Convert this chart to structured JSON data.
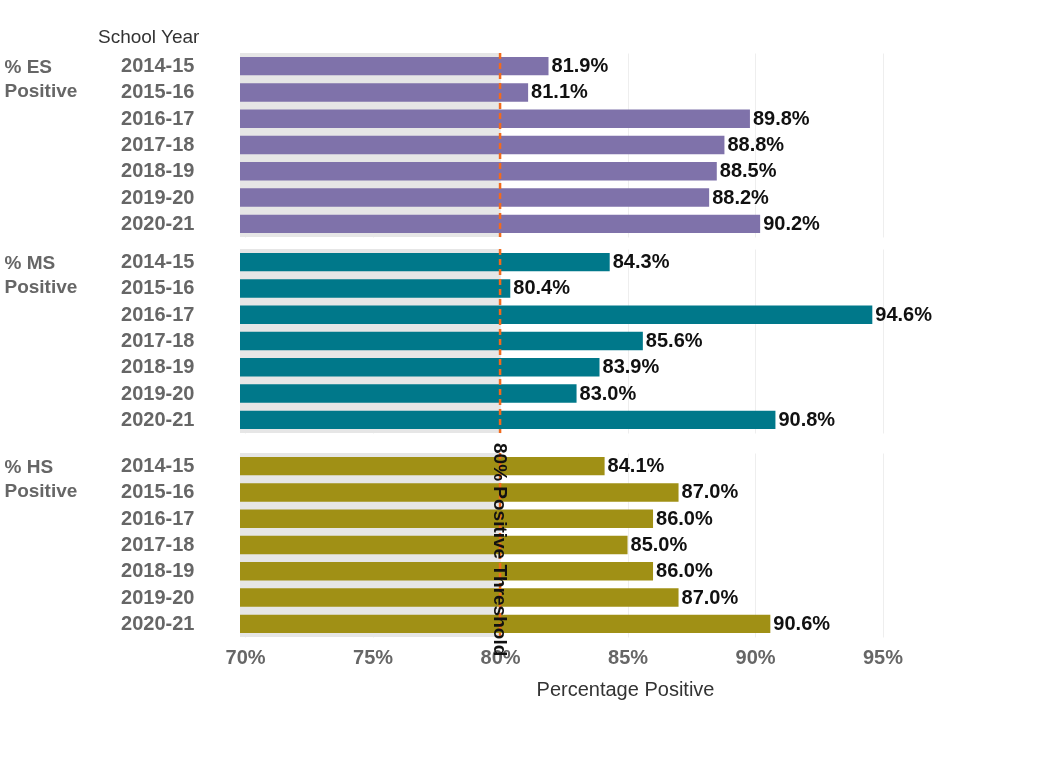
{
  "chart_data": [
    {
      "type": "bar",
      "orientation": "horizontal",
      "title": "School Year",
      "ylabel": "% ES Positive",
      "categories": [
        "2014-15",
        "2015-16",
        "2016-17",
        "2017-18",
        "2018-19",
        "2019-20",
        "2020-21"
      ],
      "series": [
        {
          "color": "#7f72aa",
          "values": [
            81.9,
            81.1,
            89.8,
            88.8,
            88.5,
            88.2,
            90.2
          ],
          "value_labels": [
            "81.9%",
            "81.1%",
            "89.8%",
            "88.8%",
            "88.5%",
            "88.2%",
            "90.2%"
          ]
        }
      ],
      "xlim": [
        69.8,
        100
      ],
      "xticks": [
        {
          "value": 70,
          "label": null
        },
        {
          "value": 75,
          "label": null
        },
        {
          "value": 80,
          "label": null
        },
        {
          "value": 85,
          "label": null
        },
        {
          "value": 90,
          "label": null
        },
        {
          "value": 95,
          "label": null
        }
      ],
      "tick_labels": "y",
      "grid": "x",
      "bands": [
        {
          "axis": "x",
          "from": 69.8,
          "to": 80,
          "color": "#e6e6e6"
        }
      ],
      "ref_lines": [
        {
          "axis": "x",
          "value": 80,
          "color": "#f26b1d",
          "line_style": "dashed"
        }
      ]
    },
    {
      "type": "bar",
      "orientation": "horizontal",
      "ylabel": "% MS Positive",
      "categories": [
        "2014-15",
        "2015-16",
        "2016-17",
        "2017-18",
        "2018-19",
        "2019-20",
        "2020-21"
      ],
      "series": [
        {
          "color": "#00788a",
          "values": [
            84.3,
            80.4,
            94.6,
            85.6,
            83.9,
            83.0,
            90.8
          ],
          "value_labels": [
            "84.3%",
            "80.4%",
            "94.6%",
            "85.6%",
            "83.9%",
            "83.0%",
            "90.8%"
          ]
        }
      ],
      "xlim": [
        69.8,
        100
      ],
      "xticks": [
        {
          "value": 70,
          "label": null
        },
        {
          "value": 75,
          "label": null
        },
        {
          "value": 80,
          "label": null
        },
        {
          "value": 85,
          "label": null
        },
        {
          "value": 90,
          "label": null
        },
        {
          "value": 95,
          "label": null
        }
      ],
      "tick_labels": "y",
      "grid": "x",
      "bands": [
        {
          "axis": "x",
          "from": 69.8,
          "to": 80,
          "color": "#e6e6e6"
        }
      ],
      "ref_lines": [
        {
          "axis": "x",
          "value": 80,
          "color": "#f26b1d",
          "line_style": "dashed"
        }
      ]
    },
    {
      "type": "bar",
      "orientation": "horizontal",
      "xlabel": "Percentage Positive",
      "ylabel": "% HS Positive",
      "categories": [
        "2014-15",
        "2015-16",
        "2016-17",
        "2017-18",
        "2018-19",
        "2019-20",
        "2020-21"
      ],
      "series": [
        {
          "color": "#a09015",
          "values": [
            84.1,
            87.0,
            86.0,
            85.0,
            86.0,
            87.0,
            90.6
          ],
          "value_labels": [
            "84.1%",
            "87.0%",
            "86.0%",
            "85.0%",
            "86.0%",
            "87.0%",
            "90.6%"
          ]
        }
      ],
      "xlim": [
        69.8,
        100
      ],
      "xticks": [
        {
          "value": 70,
          "label": "70%"
        },
        {
          "value": 75,
          "label": "75%"
        },
        {
          "value": 80,
          "label": "80%"
        },
        {
          "value": 85,
          "label": "85%"
        },
        {
          "value": 90,
          "label": "90%"
        },
        {
          "value": 95,
          "label": "95%"
        }
      ],
      "grid": "x",
      "bands": [
        {
          "axis": "x",
          "from": 69.8,
          "to": 80,
          "color": "#e6e6e6"
        }
      ],
      "ref_lines": [
        {
          "axis": "x",
          "value": 80,
          "color": "#f26b1d",
          "line_style": "dashed",
          "label": "80% Positive Threshold"
        }
      ]
    }
  ]
}
